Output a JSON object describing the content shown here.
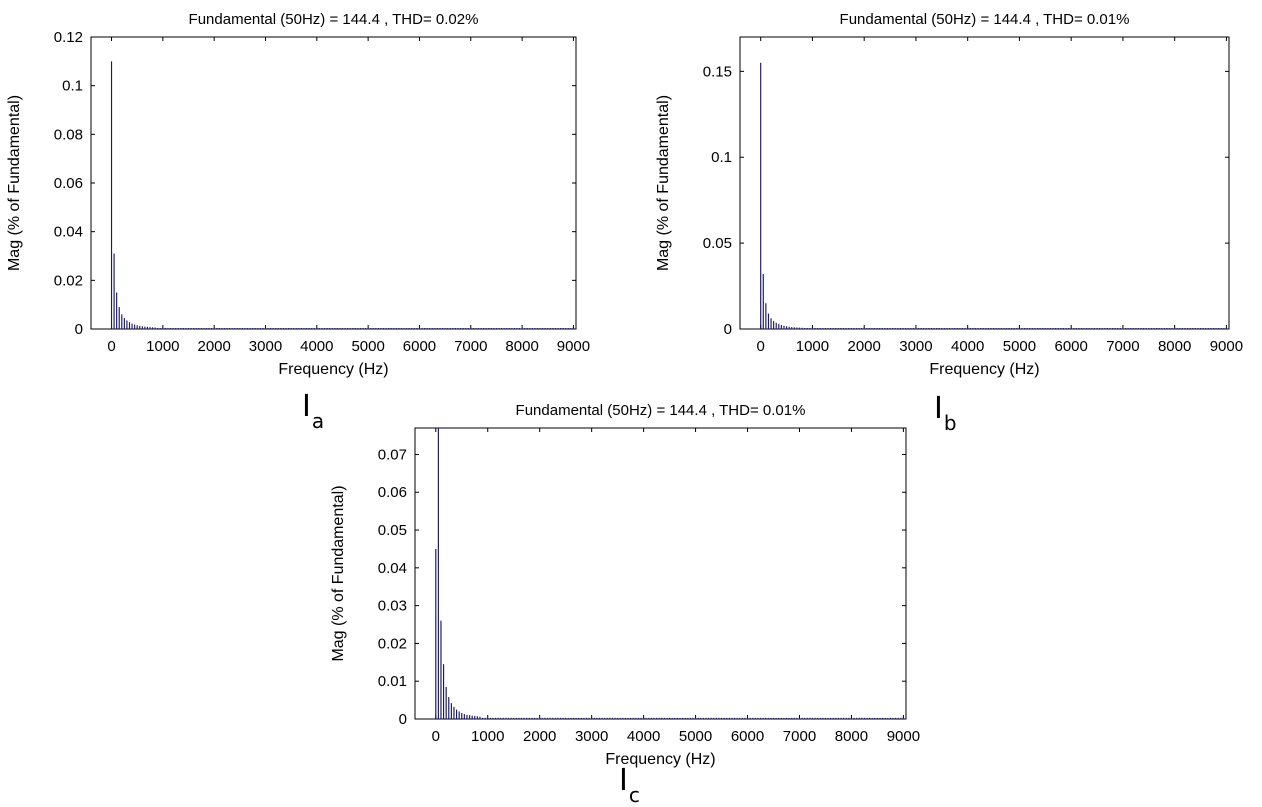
{
  "chart_data": [
    {
      "type": "bar",
      "panel_label": {
        "main": "I",
        "sub": "a"
      },
      "title": "Fundamental (50Hz) = 144.4 , THD= 0.02%",
      "xlabel": "Frequency (Hz)",
      "ylabel": "Mag (% of Fundamental)",
      "xlim": [
        -400,
        9050
      ],
      "ylim": [
        0,
        0.12
      ],
      "xticks": [
        "0",
        "1000",
        "2000",
        "3000",
        "4000",
        "5000",
        "6000",
        "7000",
        "8000",
        "9000"
      ],
      "yticks": [
        "0",
        "0.02",
        "0.04",
        "0.06",
        "0.08",
        "0.1",
        "0.12"
      ],
      "grid": false,
      "bar_color": "#1a1a66",
      "bar_step_hz": 50,
      "x_start": 0,
      "values": [
        0.11,
        0.031,
        0.015,
        0.009,
        0.006,
        0.0045,
        0.0035,
        0.0028,
        0.0022,
        0.0018,
        0.0015,
        0.0013,
        0.0011,
        0.001,
        0.0009,
        0.0008,
        0.0007,
        0.0006
      ],
      "tail_value": 0.0003
    },
    {
      "type": "bar",
      "panel_label": {
        "main": "I",
        "sub": "b"
      },
      "title": "Fundamental (50Hz) = 144.4 , THD= 0.01%",
      "xlabel": "Frequency (Hz)",
      "ylabel": "Mag (% of Fundamental)",
      "xlim": [
        -400,
        9050
      ],
      "ylim": [
        0,
        0.17
      ],
      "xticks": [
        "0",
        "1000",
        "2000",
        "3000",
        "4000",
        "5000",
        "6000",
        "7000",
        "8000",
        "9000"
      ],
      "yticks": [
        "0",
        "0.05",
        "0.1",
        "0.15"
      ],
      "grid": false,
      "bar_color": "#1a1a66",
      "bar_step_hz": 50,
      "x_start": 0,
      "values": [
        0.155,
        0.032,
        0.015,
        0.009,
        0.0062,
        0.0046,
        0.0036,
        0.0029,
        0.0023,
        0.0019,
        0.0016,
        0.0013,
        0.0011,
        0.001,
        0.0009,
        0.0008,
        0.0007,
        0.0006
      ],
      "tail_value": 0.0003
    },
    {
      "type": "bar",
      "panel_label": {
        "main": "I",
        "sub": "c"
      },
      "title": "Fundamental (50Hz) = 144.4 , THD= 0.01%",
      "xlabel": "Frequency (Hz)",
      "ylabel": "Mag (% of Fundamental)",
      "xlim": [
        -400,
        9050
      ],
      "ylim": [
        0,
        0.077
      ],
      "xticks": [
        "0",
        "1000",
        "2000",
        "3000",
        "4000",
        "5000",
        "6000",
        "7000",
        "8000",
        "9000"
      ],
      "yticks": [
        "0",
        "0.01",
        "0.02",
        "0.03",
        "0.04",
        "0.05",
        "0.06",
        "0.07"
      ],
      "grid": false,
      "bar_color": "#1a1a66",
      "bar_step_hz": 50,
      "x_start": 0,
      "values": [
        0.045,
        0.077,
        0.026,
        0.0145,
        0.0085,
        0.0058,
        0.0042,
        0.0032,
        0.0025,
        0.002,
        0.0016,
        0.0013,
        0.0011,
        0.001,
        0.0009,
        0.0008,
        0.0007,
        0.0006
      ],
      "tail_value": 0.0003
    }
  ]
}
